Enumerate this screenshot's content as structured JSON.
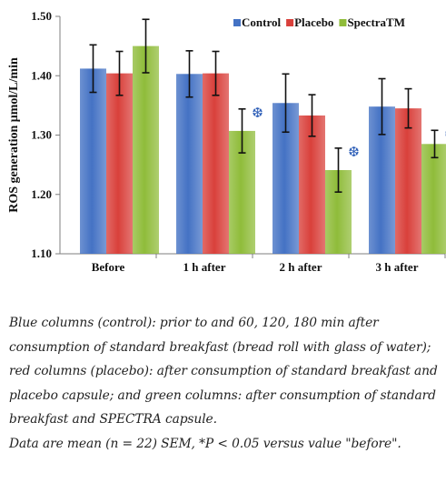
{
  "chart_data": {
    "type": "bar",
    "categories": [
      "Before",
      "1 h after",
      "2 h after",
      "3 h after"
    ],
    "ylabel": "ROS generation μmol/L/min",
    "ylim": [
      1.1,
      1.5
    ],
    "yticks": [
      "1.10",
      "1.20",
      "1.30",
      "1.40",
      "1.50"
    ],
    "grid": false,
    "legend_position": "top-right",
    "series": [
      {
        "name": "Control",
        "color": "#4472c4",
        "values": [
          1.412,
          1.403,
          1.354,
          1.348
        ],
        "errors": [
          0.04,
          0.039,
          0.049,
          0.047
        ]
      },
      {
        "name": "Placebo",
        "color": "#d9403b",
        "values": [
          1.404,
          1.404,
          1.333,
          1.345
        ],
        "errors": [
          0.037,
          0.037,
          0.035,
          0.033
        ]
      },
      {
        "name": "SpectraTM",
        "color": "#8fbc3a",
        "values": [
          1.45,
          1.307,
          1.241,
          1.285
        ],
        "errors": [
          0.045,
          0.037,
          0.037,
          0.023
        ]
      }
    ],
    "significance_marker": "❆",
    "significant": [
      [
        2,
        1
      ],
      [
        2,
        2
      ],
      [
        2,
        3
      ]
    ]
  },
  "caption": {
    "lines": [
      "Blue columns (control): prior to and 60, 120, 180 min after",
      "consumption of standard breakfast (bread roll with glass of water);",
      "red columns (placebo): after consumption of standard breakfast and",
      "placebo capsule; and green columns: after consumption of standard",
      "breakfast and SPECTRA capsule.",
      "Data are mean (n = 22)  SEM,  *P < 0.05 versus value \"before\"."
    ]
  },
  "colors": {
    "axis": "#7f7f7f",
    "error_bar": "#111111",
    "significance": "#2f5fb8"
  }
}
